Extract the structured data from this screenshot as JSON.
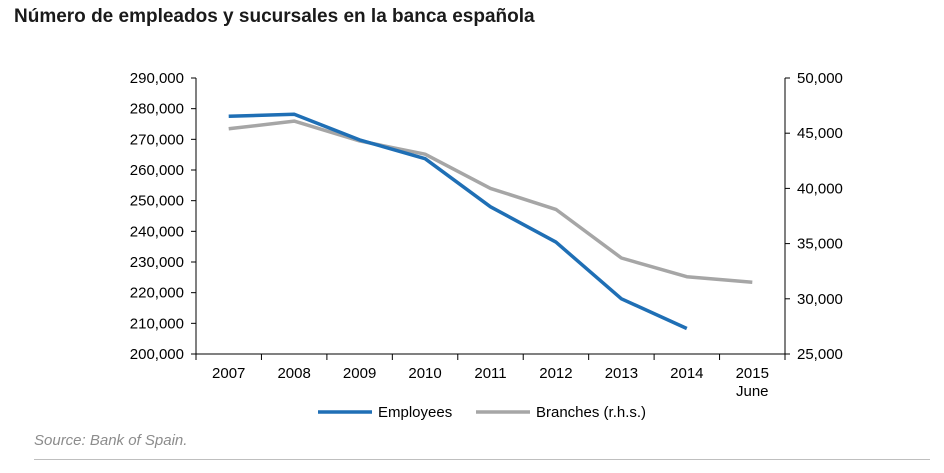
{
  "title": "Número de empleados y sucursales en la banca española",
  "source": "Source: Bank of Spain.",
  "colors": {
    "employees": "#1f6fb5",
    "branches": "#a6a6a6",
    "axis": "#000000"
  },
  "chart_data": {
    "type": "line",
    "title": "Número de empleados y sucursales en la banca española",
    "categories": [
      "2007",
      "2008",
      "2009",
      "2010",
      "2011",
      "2012",
      "2013",
      "2014",
      "2015"
    ],
    "category_sublabels": [
      "",
      "",
      "",
      "",
      "",
      "",
      "",
      "",
      "June"
    ],
    "y_left": {
      "lim": [
        200000,
        290000
      ],
      "ticks": [
        "200,000",
        "210,000",
        "220,000",
        "230,000",
        "240,000",
        "250,000",
        "260,000",
        "270,000",
        "280,000",
        "290,000"
      ],
      "values": [
        200000,
        210000,
        220000,
        230000,
        240000,
        250000,
        260000,
        270000,
        280000,
        290000
      ]
    },
    "y_right": {
      "lim": [
        25000,
        50000
      ],
      "ticks": [
        "25,000",
        "30,000",
        "35,000",
        "40,000",
        "45,000",
        "50,000"
      ],
      "values": [
        25000,
        30000,
        35000,
        40000,
        45000,
        50000
      ]
    },
    "series": [
      {
        "name": "Employees",
        "axis": "left",
        "values": [
          277500,
          278200,
          269800,
          263700,
          248000,
          236500,
          218000,
          208300,
          null
        ]
      },
      {
        "name": "Branches (r.h.s.)",
        "axis": "right",
        "values": [
          45400,
          46100,
          44300,
          43100,
          40000,
          38100,
          33700,
          32000,
          31500
        ]
      }
    ],
    "legend": "bottom",
    "grid": false
  }
}
